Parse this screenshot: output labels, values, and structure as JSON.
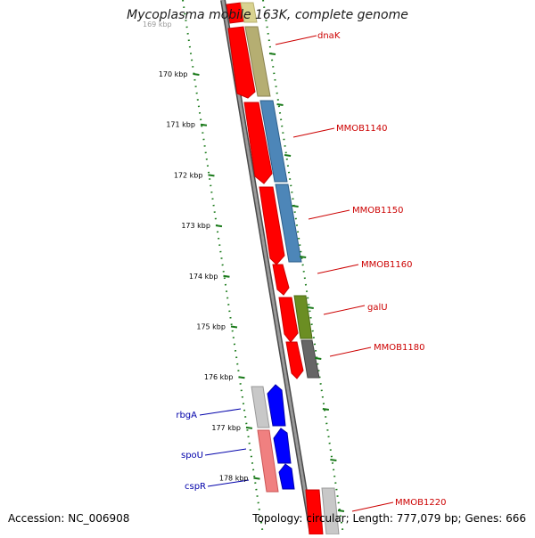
{
  "map": {
    "title": "Mycoplasma mobile 163K, complete genome",
    "accession": "Accession: NC_006908",
    "topology_summary": "Topology: circular; Length: 777,079 bp; Genes: 666",
    "faint_top_tick": "169 kbp",
    "ruler_ticks": [
      "170 kbp",
      "171 kbp",
      "172 kbp",
      "173 kbp",
      "174 kbp",
      "175 kbp",
      "176 kbp",
      "177 kbp",
      "178 kbp"
    ],
    "colors": {
      "forward_cds": "#ff0000",
      "reverse_cds": "#0000ff",
      "ruler_dots": "#1a7a1a",
      "backbone": "#7a7a7a",
      "forward_label": "#cc0000",
      "reverse_label": "#0000aa",
      "cog_tan": "#b5ae72",
      "cog_steel_blue": "#4d86b8",
      "cog_olive": "#6b8e23",
      "cog_gray": "#666666",
      "cog_light_gray": "#c8c8c8",
      "cog_pink": "#f08080"
    }
  },
  "genes": {
    "forward_labels": [
      "dnaK",
      "MMOB1140",
      "MMOB1150",
      "MMOB1160",
      "galU",
      "MMOB1180",
      "MMOB1220"
    ],
    "reverse_labels": [
      "rbgA",
      "spoU",
      "cspR"
    ]
  }
}
